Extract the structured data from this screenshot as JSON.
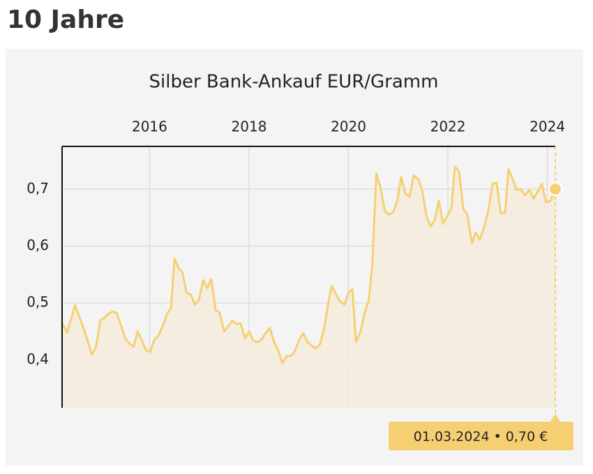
{
  "page_title": "10 Jahre",
  "chart_data": {
    "type": "line",
    "title": "Silber Bank-Ankauf EUR/Gramm",
    "annotation": "01.03.2024 • 0,70 €",
    "color": "#f6cf72",
    "area_color": "#f5ecdc",
    "grid": true,
    "xlim": [
      2014.24,
      2024.16
    ],
    "xticks": [
      2016,
      2018,
      2020,
      2022,
      2024
    ],
    "ylim": [
      0.316,
      0.775
    ],
    "yticks": [
      {
        "value": 0.4,
        "label": "0,4"
      },
      {
        "value": 0.5,
        "label": "0,5"
      },
      {
        "value": 0.6,
        "label": "0,6"
      },
      {
        "value": 0.7,
        "label": "0,7"
      }
    ],
    "x": [
      2014.24,
      2014.34,
      2014.42,
      2014.5,
      2014.59,
      2014.67,
      2014.76,
      2014.84,
      2014.92,
      2015.01,
      2015.09,
      2015.17,
      2015.26,
      2015.34,
      2015.43,
      2015.51,
      2015.59,
      2015.68,
      2015.76,
      2015.85,
      2015.93,
      2016.01,
      2016.1,
      2016.18,
      2016.27,
      2016.35,
      2016.43,
      2016.5,
      2016.59,
      2016.66,
      2016.74,
      2016.83,
      2016.91,
      2016.99,
      2017.08,
      2017.16,
      2017.24,
      2017.33,
      2017.41,
      2017.5,
      2017.58,
      2017.66,
      2017.75,
      2017.83,
      2017.92,
      2018.0,
      2018.08,
      2018.17,
      2018.25,
      2018.34,
      2018.42,
      2018.5,
      2018.59,
      2018.67,
      2018.76,
      2018.84,
      2018.92,
      2019.01,
      2019.09,
      2019.17,
      2019.26,
      2019.34,
      2019.43,
      2019.51,
      2019.59,
      2019.66,
      2019.75,
      2019.83,
      2019.92,
      2020.0,
      2020.08,
      2020.15,
      2020.24,
      2020.32,
      2020.41,
      2020.48,
      2020.56,
      2020.64,
      2020.73,
      2020.81,
      2020.9,
      2020.98,
      2021.06,
      2021.15,
      2021.23,
      2021.31,
      2021.4,
      2021.48,
      2021.57,
      2021.65,
      2021.73,
      2021.82,
      2021.9,
      2021.99,
      2022.07,
      2022.14,
      2022.22,
      2022.31,
      2022.39,
      2022.48,
      2022.56,
      2022.64,
      2022.73,
      2022.81,
      2022.9,
      2022.98,
      2023.06,
      2023.15,
      2023.22,
      2023.3,
      2023.38,
      2023.47,
      2023.55,
      2023.64,
      2023.72,
      2023.8,
      2023.89,
      2023.97,
      2024.06,
      2024.16
    ],
    "values": [
      0.465,
      0.448,
      0.471,
      0.496,
      0.475,
      0.456,
      0.432,
      0.409,
      0.422,
      0.47,
      0.474,
      0.481,
      0.485,
      0.482,
      0.459,
      0.438,
      0.429,
      0.423,
      0.45,
      0.433,
      0.417,
      0.414,
      0.436,
      0.443,
      0.461,
      0.481,
      0.491,
      0.578,
      0.56,
      0.554,
      0.518,
      0.515,
      0.497,
      0.505,
      0.54,
      0.526,
      0.542,
      0.487,
      0.483,
      0.45,
      0.459,
      0.469,
      0.463,
      0.464,
      0.438,
      0.45,
      0.434,
      0.431,
      0.436,
      0.448,
      0.456,
      0.432,
      0.416,
      0.394,
      0.407,
      0.407,
      0.415,
      0.436,
      0.447,
      0.432,
      0.425,
      0.42,
      0.428,
      0.456,
      0.497,
      0.53,
      0.515,
      0.503,
      0.497,
      0.518,
      0.524,
      0.432,
      0.448,
      0.481,
      0.505,
      0.567,
      0.727,
      0.704,
      0.662,
      0.655,
      0.66,
      0.679,
      0.721,
      0.691,
      0.687,
      0.724,
      0.718,
      0.699,
      0.652,
      0.634,
      0.645,
      0.68,
      0.639,
      0.653,
      0.666,
      0.739,
      0.732,
      0.665,
      0.655,
      0.605,
      0.624,
      0.611,
      0.634,
      0.661,
      0.71,
      0.711,
      0.658,
      0.658,
      0.735,
      0.718,
      0.699,
      0.7,
      0.689,
      0.699,
      0.683,
      0.695,
      0.709,
      0.677,
      0.679,
      0.7
    ]
  }
}
